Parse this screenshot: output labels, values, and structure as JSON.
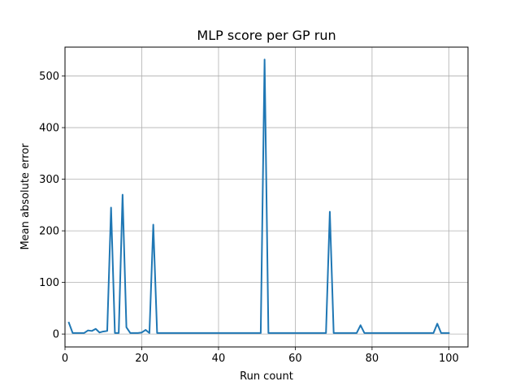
{
  "chart_data": {
    "type": "line",
    "title": "MLP score per GP run",
    "xlabel": "Run count",
    "ylabel": "Mean absolute error",
    "xlim": [
      0,
      105
    ],
    "ylim": [
      -25,
      556
    ],
    "xticks": [
      0,
      20,
      40,
      60,
      80,
      100
    ],
    "yticks": [
      0,
      100,
      200,
      300,
      400,
      500
    ],
    "grid": true,
    "line_color": "#1f77b4",
    "series": [
      {
        "x": [
          1,
          2,
          3,
          4,
          5,
          6,
          7,
          8,
          9,
          10,
          11,
          12,
          13,
          14,
          15,
          16,
          17,
          18,
          19,
          20,
          21,
          22,
          23,
          24,
          25,
          26,
          27,
          28,
          29,
          30,
          31,
          32,
          33,
          34,
          35,
          36,
          37,
          38,
          39,
          40,
          41,
          42,
          43,
          44,
          45,
          46,
          47,
          48,
          49,
          50,
          51,
          52,
          53,
          54,
          55,
          56,
          57,
          58,
          59,
          60,
          61,
          62,
          63,
          64,
          65,
          66,
          67,
          68,
          69,
          70,
          71,
          72,
          73,
          74,
          75,
          76,
          77,
          78,
          79,
          80,
          81,
          82,
          83,
          84,
          85,
          86,
          87,
          88,
          89,
          90,
          91,
          92,
          93,
          94,
          95,
          96,
          97,
          98,
          99,
          100
        ],
        "y": [
          22,
          2,
          2,
          2,
          2,
          7,
          6,
          10,
          3,
          5,
          6,
          245,
          2,
          2,
          270,
          13,
          2,
          2,
          2,
          3,
          8,
          2,
          212,
          2,
          2,
          2,
          2,
          2,
          2,
          2,
          2,
          2,
          2,
          2,
          2,
          2,
          2,
          2,
          2,
          2,
          2,
          2,
          2,
          2,
          2,
          2,
          2,
          2,
          2,
          2,
          2,
          532,
          2,
          2,
          2,
          2,
          2,
          2,
          2,
          2,
          2,
          2,
          2,
          2,
          2,
          2,
          2,
          2,
          237,
          2,
          2,
          2,
          2,
          2,
          2,
          2,
          17,
          2,
          2,
          2,
          2,
          2,
          2,
          2,
          2,
          2,
          2,
          2,
          2,
          2,
          2,
          2,
          2,
          2,
          2,
          2,
          20,
          2,
          2,
          2
        ]
      }
    ]
  }
}
